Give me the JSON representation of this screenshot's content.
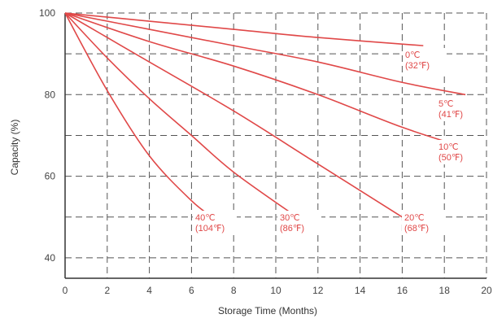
{
  "chart_data": {
    "type": "line",
    "xlabel": "Storage Time (Months)",
    "ylabel": "Capacity (%)",
    "xlim": [
      0,
      20
    ],
    "ylim": [
      35,
      100
    ],
    "x_ticks": [
      0,
      2,
      4,
      6,
      8,
      10,
      12,
      14,
      16,
      18,
      20
    ],
    "y_ticks": [
      40,
      60,
      80,
      100
    ],
    "grid": true,
    "series_color": "#e04848",
    "series": [
      {
        "name": "0℃ (32℉)",
        "label_lines": [
          "0℃",
          "(32℉)"
        ],
        "x": [
          0,
          4,
          8,
          12,
          17
        ],
        "y": [
          100,
          98,
          96,
          94,
          92
        ]
      },
      {
        "name": "5℃ (41℉)",
        "label_lines": [
          "5℃",
          "(41℉)"
        ],
        "x": [
          0,
          4,
          8,
          12,
          16,
          19
        ],
        "y": [
          100,
          96,
          92,
          88,
          83,
          80
        ]
      },
      {
        "name": "10℃ (50℉)",
        "label_lines": [
          "10℃",
          "(50℉)"
        ],
        "x": [
          0,
          4,
          8,
          12,
          16,
          19
        ],
        "y": [
          100,
          93,
          87,
          80,
          72,
          67
        ]
      },
      {
        "name": "20℃ (68℉)",
        "label_lines": [
          "20℃",
          "(68℉)"
        ],
        "x": [
          0,
          2,
          4,
          8,
          12,
          16
        ],
        "y": [
          100,
          94,
          88,
          76,
          63,
          50
        ]
      },
      {
        "name": "30℃ (86℉)",
        "label_lines": [
          "30℃",
          "(86℉)"
        ],
        "x": [
          0,
          2,
          4,
          6,
          8,
          11
        ],
        "y": [
          100,
          89,
          79,
          70,
          61,
          50
        ]
      },
      {
        "name": "40℃ (104℉)",
        "label_lines": [
          "40℃",
          "(104℉)"
        ],
        "x": [
          0,
          2,
          4,
          6,
          7
        ],
        "y": [
          100,
          81,
          65,
          54,
          50
        ]
      }
    ]
  }
}
